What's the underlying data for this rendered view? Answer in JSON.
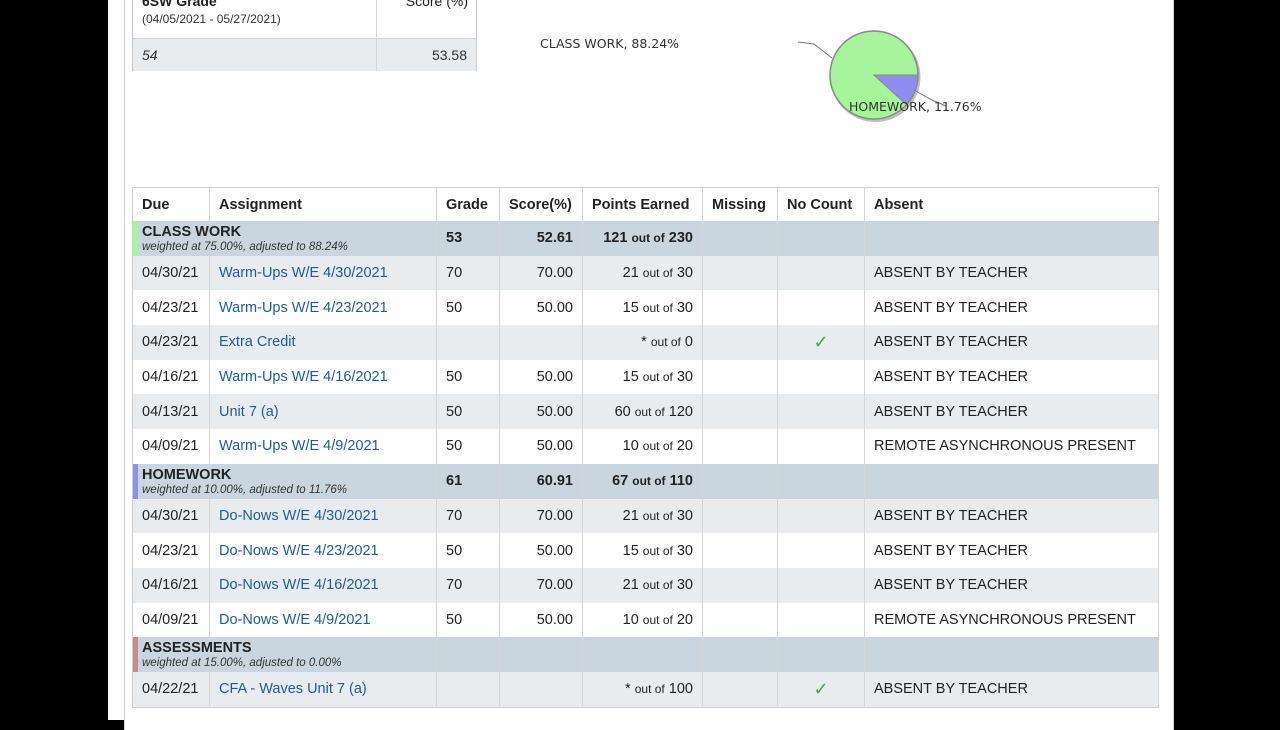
{
  "summary": {
    "label": "6SW Grade",
    "dates": "(04/05/2021 - 05/27/2021)",
    "score_header": "Score (%)",
    "grade_value": "54",
    "score_value": "53.58"
  },
  "pie": {
    "slices": [
      {
        "label": "CLASS WORK, 88.24%",
        "value": 88.24,
        "color": "#a6f59b"
      },
      {
        "label": "HOMEWORK, 11.76%",
        "value": 11.76,
        "color": "#8f8df0"
      }
    ]
  },
  "table": {
    "headers": [
      "Due",
      "Assignment",
      "Grade",
      "Score(%)",
      "Points Earned",
      "Missing",
      "No Count",
      "Absent"
    ],
    "out_of": "out of",
    "categories": [
      {
        "name": "CLASS WORK",
        "weight": "weighted at 75.00%, adjusted to 88.24%",
        "color": "#a6f59b",
        "grade": "53",
        "score": "52.61",
        "earned": "121",
        "possible": "230",
        "rows": [
          {
            "due": "04/30/21",
            "name": "Warm-Ups W/E 4/30/2021",
            "grade": "70",
            "score": "70.00",
            "earned": "21",
            "possible": "30",
            "nocount": "",
            "absent": "ABSENT BY TEACHER"
          },
          {
            "due": "04/23/21",
            "name": "Warm-Ups W/E 4/23/2021",
            "grade": "50",
            "score": "50.00",
            "earned": "15",
            "possible": "30",
            "nocount": "",
            "absent": "ABSENT BY TEACHER"
          },
          {
            "due": "04/23/21",
            "name": "Extra Credit",
            "grade": "",
            "score": "",
            "earned": "*",
            "possible": "0",
            "nocount": "✓",
            "absent": "ABSENT BY TEACHER"
          },
          {
            "due": "04/16/21",
            "name": "Warm-Ups W/E 4/16/2021",
            "grade": "50",
            "score": "50.00",
            "earned": "15",
            "possible": "30",
            "nocount": "",
            "absent": "ABSENT BY TEACHER"
          },
          {
            "due": "04/13/21",
            "name": "Unit 7 (a)",
            "grade": "50",
            "score": "50.00",
            "earned": "60",
            "possible": "120",
            "nocount": "",
            "absent": "ABSENT BY TEACHER"
          },
          {
            "due": "04/09/21",
            "name": "Warm-Ups W/E 4/9/2021",
            "grade": "50",
            "score": "50.00",
            "earned": "10",
            "possible": "20",
            "nocount": "",
            "absent": "REMOTE ASYNCHRONOUS PRESENT"
          }
        ]
      },
      {
        "name": "HOMEWORK",
        "weight": "weighted at 10.00%, adjusted to 11.76%",
        "color": "#8f8df0",
        "grade": "61",
        "score": "60.91",
        "earned": "67",
        "possible": "110",
        "rows": [
          {
            "due": "04/30/21",
            "name": "Do-Nows W/E 4/30/2021",
            "grade": "70",
            "score": "70.00",
            "earned": "21",
            "possible": "30",
            "nocount": "",
            "absent": "ABSENT BY TEACHER"
          },
          {
            "due": "04/23/21",
            "name": "Do-Nows W/E 4/23/2021",
            "grade": "50",
            "score": "50.00",
            "earned": "15",
            "possible": "30",
            "nocount": "",
            "absent": "ABSENT BY TEACHER"
          },
          {
            "due": "04/16/21",
            "name": "Do-Nows W/E 4/16/2021",
            "grade": "70",
            "score": "70.00",
            "earned": "21",
            "possible": "30",
            "nocount": "",
            "absent": "ABSENT BY TEACHER"
          },
          {
            "due": "04/09/21",
            "name": "Do-Nows W/E 4/9/2021",
            "grade": "50",
            "score": "50.00",
            "earned": "10",
            "possible": "20",
            "nocount": "",
            "absent": "REMOTE ASYNCHRONOUS PRESENT"
          }
        ]
      },
      {
        "name": "ASSESSMENTS",
        "weight": "weighted at 15.00%, adjusted to 0.00%",
        "color": "#c98a8a",
        "grade": "",
        "score": "",
        "earned": "",
        "possible": "",
        "rows": [
          {
            "due": "04/22/21",
            "name": "CFA - Waves Unit 7 (a)",
            "grade": "",
            "score": "",
            "earned": "*",
            "possible": "100",
            "nocount": "✓",
            "absent": "ABSENT BY TEACHER"
          }
        ]
      }
    ]
  }
}
